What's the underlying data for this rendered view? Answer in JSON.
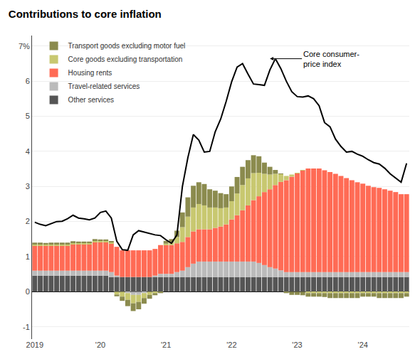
{
  "chart_data": {
    "type": "bar",
    "stacked": true,
    "title": "Contributions to core inflation",
    "categories": [
      "2019",
      null,
      null,
      null,
      null,
      null,
      null,
      null,
      null,
      null,
      null,
      null,
      "'20",
      null,
      null,
      null,
      null,
      null,
      null,
      null,
      null,
      null,
      null,
      null,
      "'21",
      null,
      null,
      null,
      null,
      null,
      null,
      null,
      null,
      null,
      null,
      null,
      "'22",
      null,
      null,
      null,
      null,
      null,
      null,
      null,
      null,
      null,
      null,
      null,
      "'23",
      null,
      null,
      null,
      null,
      null,
      null,
      null,
      null,
      null,
      null,
      null,
      "'24",
      null,
      null,
      null,
      null,
      null,
      null,
      null,
      null
    ],
    "series": [
      {
        "name": "Transport goods excluding motor fuel",
        "color": "#8B8B4E",
        "values": [
          0.04,
          0.04,
          0.03,
          0.04,
          0.04,
          0.04,
          0.04,
          0.04,
          0.03,
          0.03,
          0.03,
          0.04,
          0.03,
          0.03,
          0.02,
          -0.05,
          -0.12,
          -0.18,
          -0.22,
          -0.21,
          -0.16,
          -0.11,
          -0.06,
          -0.04,
          0.08,
          0.09,
          0.18,
          0.42,
          0.55,
          0.62,
          0.62,
          0.61,
          0.52,
          0.48,
          0.43,
          0.38,
          0.42,
          0.47,
          0.52,
          0.52,
          0.51,
          0.47,
          0.32,
          0.22,
          0.11,
          0.02,
          -0.04,
          -0.09,
          -0.09,
          -0.1,
          -0.1,
          -0.1,
          -0.1,
          -0.11,
          -0.14,
          -0.14,
          -0.14,
          -0.14,
          -0.14,
          -0.14,
          -0.1,
          -0.1,
          -0.1,
          -0.14,
          -0.14,
          -0.14,
          -0.14,
          -0.14,
          -0.1
        ]
      },
      {
        "name": "Core goods excluding transportation",
        "color": "#C8C870",
        "values": [
          0.04,
          0.04,
          0.04,
          0.04,
          0.04,
          0.04,
          0.04,
          0.04,
          0.04,
          0.04,
          0.04,
          0.04,
          0.04,
          0.04,
          0.04,
          -0.08,
          -0.14,
          -0.19,
          -0.24,
          -0.2,
          -0.14,
          -0.09,
          -0.04,
          0.0,
          0.04,
          0.08,
          0.18,
          0.42,
          0.58,
          0.68,
          0.72,
          0.68,
          0.62,
          0.58,
          0.52,
          0.48,
          0.52,
          0.62,
          0.72,
          0.77,
          0.77,
          0.67,
          0.52,
          0.42,
          0.32,
          0.22,
          0.12,
          0.06,
          0.01,
          0.01,
          -0.04,
          -0.04,
          -0.04,
          -0.04,
          -0.04,
          -0.04,
          -0.04,
          -0.04,
          -0.04,
          -0.04,
          -0.04,
          -0.04,
          -0.04,
          -0.04,
          -0.04,
          -0.04,
          -0.04,
          -0.04,
          -0.04
        ]
      },
      {
        "name": "Housing rents",
        "color": "#FF6B55",
        "values": [
          0.72,
          0.72,
          0.72,
          0.72,
          0.72,
          0.72,
          0.72,
          0.76,
          0.76,
          0.76,
          0.76,
          0.82,
          0.82,
          0.82,
          0.82,
          0.82,
          0.76,
          0.76,
          0.76,
          0.76,
          0.76,
          0.76,
          0.76,
          0.82,
          0.82,
          0.82,
          0.82,
          0.82,
          0.86,
          0.92,
          0.92,
          0.92,
          0.92,
          0.96,
          1.0,
          1.06,
          1.2,
          1.32,
          1.46,
          1.6,
          1.75,
          1.9,
          2.08,
          2.22,
          2.38,
          2.52,
          2.62,
          2.72,
          2.82,
          2.9,
          2.95,
          2.95,
          2.95,
          2.9,
          2.85,
          2.8,
          2.74,
          2.68,
          2.62,
          2.56,
          2.52,
          2.46,
          2.42,
          2.4,
          2.36,
          2.32,
          2.28,
          2.22,
          2.22
        ]
      },
      {
        "name": "Travel-related services",
        "color": "#BBBBBB",
        "values": [
          0.14,
          0.14,
          0.14,
          0.14,
          0.14,
          0.14,
          0.14,
          0.14,
          0.14,
          0.14,
          0.14,
          0.14,
          0.14,
          0.14,
          0.14,
          0.04,
          0.0,
          -0.04,
          -0.09,
          -0.09,
          -0.04,
          0.0,
          0.04,
          0.09,
          0.09,
          0.09,
          0.14,
          0.18,
          0.28,
          0.38,
          0.44,
          0.44,
          0.44,
          0.44,
          0.44,
          0.44,
          0.44,
          0.44,
          0.44,
          0.44,
          0.44,
          0.4,
          0.34,
          0.28,
          0.24,
          0.19,
          0.14,
          0.14,
          0.14,
          0.14,
          0.14,
          0.14,
          0.14,
          0.14,
          0.14,
          0.14,
          0.14,
          0.14,
          0.14,
          0.14,
          0.14,
          0.14,
          0.14,
          0.14,
          0.14,
          0.14,
          0.14,
          0.14,
          0.14
        ]
      },
      {
        "name": "Other services",
        "color": "#555555",
        "values": [
          0.46,
          0.46,
          0.46,
          0.46,
          0.46,
          0.46,
          0.46,
          0.46,
          0.46,
          0.46,
          0.46,
          0.46,
          0.46,
          0.46,
          0.42,
          0.42,
          0.42,
          0.42,
          0.42,
          0.42,
          0.42,
          0.42,
          0.42,
          0.42,
          0.42,
          0.42,
          0.42,
          0.42,
          0.42,
          0.42,
          0.42,
          0.42,
          0.42,
          0.42,
          0.42,
          0.42,
          0.42,
          0.42,
          0.42,
          0.42,
          0.42,
          0.42,
          0.42,
          0.42,
          0.42,
          0.42,
          0.42,
          0.42,
          0.42,
          0.42,
          0.42,
          0.42,
          0.42,
          0.42,
          0.42,
          0.42,
          0.42,
          0.42,
          0.42,
          0.42,
          0.42,
          0.42,
          0.42,
          0.42,
          0.42,
          0.42,
          0.42,
          0.42,
          0.42
        ]
      },
      {
        "type": "line",
        "color": "black",
        "values": [
          1.98,
          1.92,
          1.88,
          1.94,
          2.0,
          2.01,
          2.08,
          2.18,
          2.1,
          2.08,
          2.05,
          2.1,
          2.26,
          2.3,
          2.1,
          1.44,
          1.2,
          1.18,
          1.62,
          1.74,
          1.7,
          1.66,
          1.62,
          1.6,
          1.48,
          1.38,
          1.62,
          3.0,
          3.82,
          4.48,
          4.32,
          3.98,
          4.0,
          4.56,
          4.92,
          5.42,
          5.98,
          6.4,
          6.5,
          6.2,
          5.92,
          5.9,
          5.88,
          6.32,
          6.64,
          6.36,
          6.0,
          5.7,
          5.56,
          5.55,
          5.58,
          5.5,
          5.3,
          4.82,
          4.7,
          4.35,
          4.14,
          3.98,
          4.0,
          3.92,
          3.86,
          3.76,
          3.68,
          3.64,
          3.52,
          3.36,
          3.24,
          3.12,
          3.66
        ]
      }
    ],
    "ylim": [
      -1.35,
      7.3
    ],
    "yticks": [
      -1,
      0,
      1,
      2,
      3,
      4,
      5,
      6,
      {
        "value": 7,
        "label": "7%"
      }
    ],
    "grid": true,
    "legend": "upper left",
    "annotations": [
      {
        "text": "Core consumer-\nprice index",
        "x": 43,
        "y": 6.64
      }
    ]
  }
}
